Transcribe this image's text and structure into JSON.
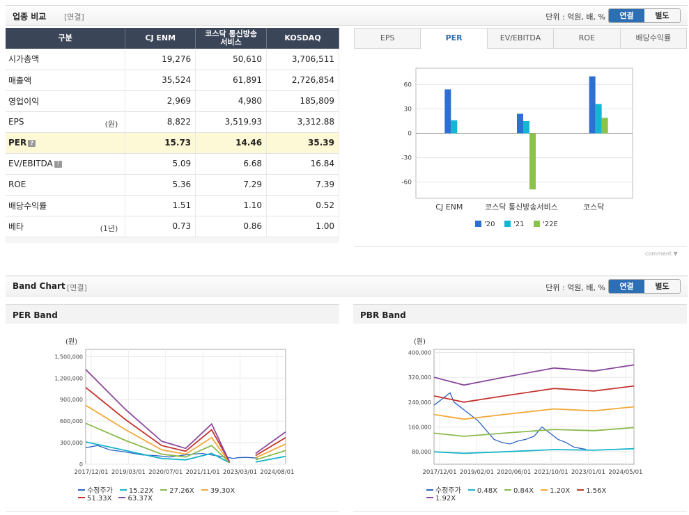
{
  "industry": {
    "title": "업종 비교",
    "tag": "[연결]",
    "unit": "단위 : 억원, 배, %",
    "toggle": {
      "on": "연결",
      "off": "별도"
    },
    "headers": [
      "구분",
      "CJ ENM",
      "코스닥 통신방송\n서비스",
      "KOSDAQ"
    ],
    "rows": [
      {
        "label": "시가총액",
        "sub": "",
        "v": [
          "19,276",
          "50,610",
          "3,706,511"
        ]
      },
      {
        "label": "매출액",
        "sub": "",
        "v": [
          "35,524",
          "61,891",
          "2,726,854"
        ]
      },
      {
        "label": "영업이익",
        "sub": "",
        "v": [
          "2,969",
          "4,980",
          "185,809"
        ]
      },
      {
        "label": "EPS",
        "sub": "(원)",
        "v": [
          "8,822",
          "3,519.93",
          "3,312.88"
        ]
      },
      {
        "label": "PER",
        "sub": "",
        "v": [
          "15.73",
          "14.46",
          "35.39"
        ]
      },
      {
        "label": "EV/EBITDA",
        "sub": "",
        "v": [
          "5.09",
          "6.68",
          "16.84"
        ]
      },
      {
        "label": "ROE",
        "sub": "",
        "v": [
          "5.36",
          "7.29",
          "7.39"
        ]
      },
      {
        "label": "배당수익률",
        "sub": "",
        "v": [
          "1.51",
          "1.10",
          "0.52"
        ]
      },
      {
        "label": "베타",
        "sub": "(1년)",
        "v": [
          "0.73",
          "0.86",
          "1.00"
        ]
      }
    ],
    "tabs": [
      "EPS",
      "PER",
      "EV/EBITDA",
      "ROE",
      "배당수익률"
    ],
    "comment": "comment"
  },
  "band": {
    "title": "Band Chart",
    "tag": "[연결]",
    "unit": "단위 : 억원, 배, %",
    "toggle": {
      "on": "연결",
      "off": "별도"
    },
    "per_title": "PER Band",
    "pbr_title": "PBR Band"
  },
  "colors": {
    "s20": "#2e6fd3",
    "s21": "#15b6d4",
    "s22": "#8cc24a"
  },
  "chart_data": [
    {
      "type": "bar",
      "title": "PER",
      "categories": [
        "CJ ENM",
        "코스닥 통신방송서비스",
        "코스닥"
      ],
      "series": [
        {
          "name": "'20",
          "color": "#2e6fd3",
          "values": [
            54,
            24,
            70
          ]
        },
        {
          "name": "'21",
          "color": "#15b6d4",
          "values": [
            16,
            15,
            36
          ]
        },
        {
          "name": "'22E",
          "color": "#8cc24a",
          "values": [
            null,
            -69,
            19
          ]
        }
      ],
      "yticks": [
        60,
        30,
        0,
        -30,
        -60
      ],
      "ylim": [
        -80,
        80
      ]
    },
    {
      "type": "line",
      "title": "PER Band",
      "ylabel": "(원)",
      "yticks": [
        "1,500,000",
        "1,200,000",
        "900,000",
        "600,000",
        "300,000",
        "0"
      ],
      "ytick_values": [
        1500000,
        1200000,
        900000,
        600000,
        300000,
        0
      ],
      "xticks": [
        "2017/12/01",
        "2019/03/01",
        "2020/07/01",
        "2021/11/01",
        "2023/03/01",
        "2024/08/01"
      ],
      "ylim": [
        0,
        1600000
      ],
      "series": [
        {
          "name": "수정주가",
          "color": "#2b62c4",
          "x": [
            0,
            0.06,
            0.12,
            0.2,
            0.28,
            0.35,
            0.42,
            0.5,
            0.58,
            0.65,
            0.7,
            0.74,
            0.76,
            0.8,
            0.86
          ],
          "y": [
            230000,
            260000,
            200000,
            170000,
            130000,
            120000,
            100000,
            130000,
            150000,
            120000,
            100000,
            80000,
            90000,
            95000,
            85000
          ]
        },
        {
          "name": "15.22X",
          "color": "#17b3c9",
          "x": [
            0,
            0.2,
            0.38,
            0.5,
            0.63,
            0.72,
            0.78,
            0.85,
            1.0
          ],
          "y": [
            310000,
            190000,
            80000,
            60000,
            150000,
            20000,
            null,
            30000,
            110000
          ]
        },
        {
          "name": "27.26X",
          "color": "#8ab94a",
          "x": [
            0,
            0.2,
            0.38,
            0.5,
            0.63,
            0.72,
            0.78,
            0.85,
            1.0
          ],
          "y": [
            570000,
            330000,
            140000,
            100000,
            260000,
            20000,
            null,
            60000,
            190000
          ]
        },
        {
          "name": "39.30X",
          "color": "#f2a838",
          "x": [
            0,
            0.2,
            0.38,
            0.5,
            0.63,
            0.72,
            0.78,
            0.85,
            1.0
          ],
          "y": [
            820000,
            480000,
            200000,
            140000,
            370000,
            20000,
            null,
            90000,
            280000
          ]
        },
        {
          "name": "51.33X",
          "color": "#c4342f",
          "x": [
            0,
            0.2,
            0.38,
            0.5,
            0.63,
            0.72,
            0.78,
            0.85,
            1.0
          ],
          "y": [
            1070000,
            620000,
            260000,
            180000,
            480000,
            30000,
            null,
            120000,
            370000
          ]
        },
        {
          "name": "63.37X",
          "color": "#8a4a9c",
          "x": [
            0,
            0.2,
            0.38,
            0.5,
            0.63,
            0.72,
            0.78,
            0.85,
            1.0
          ],
          "y": [
            1320000,
            760000,
            320000,
            220000,
            560000,
            30000,
            null,
            150000,
            450000
          ]
        }
      ]
    },
    {
      "type": "line",
      "title": "PBR Band",
      "ylabel": "(원)",
      "yticks": [
        "400,000",
        "320,000",
        "240,000",
        "160,000",
        "80,000"
      ],
      "ytick_values": [
        400000,
        320000,
        240000,
        160000,
        80000
      ],
      "xticks": [
        "2017/12/01",
        "2019/02/01",
        "2020/06/01",
        "2021/10/01",
        "2023/01/01",
        "2024/05/01"
      ],
      "ylim": [
        40000,
        410000
      ],
      "series": [
        {
          "name": "수정주가",
          "color": "#2b62c4",
          "x": [
            0,
            0.04,
            0.08,
            0.1,
            0.14,
            0.18,
            0.22,
            0.26,
            0.3,
            0.34,
            0.38,
            0.42,
            0.46,
            0.5,
            0.54,
            0.58,
            0.62,
            0.66,
            0.7,
            0.74,
            0.76
          ],
          "y": [
            230000,
            250000,
            270000,
            240000,
            220000,
            200000,
            180000,
            150000,
            120000,
            110000,
            105000,
            115000,
            120000,
            130000,
            160000,
            140000,
            120000,
            110000,
            95000,
            90000,
            88000
          ]
        },
        {
          "name": "0.48X",
          "color": "#17b3c9",
          "x": [
            0,
            0.15,
            0.35,
            0.6,
            0.8,
            1.0
          ],
          "y": [
            80000,
            75000,
            80000,
            87000,
            85000,
            90000
          ]
        },
        {
          "name": "0.84X",
          "color": "#8ab94a",
          "x": [
            0,
            0.15,
            0.35,
            0.6,
            0.8,
            1.0
          ],
          "y": [
            140000,
            130000,
            140000,
            152000,
            148000,
            158000
          ]
        },
        {
          "name": "1.20X",
          "color": "#f2a838",
          "x": [
            0,
            0.15,
            0.35,
            0.6,
            0.8,
            1.0
          ],
          "y": [
            200000,
            185000,
            200000,
            218000,
            212000,
            225000
          ]
        },
        {
          "name": "1.56X",
          "color": "#c4342f",
          "x": [
            0,
            0.15,
            0.35,
            0.6,
            0.8,
            1.0
          ],
          "y": [
            260000,
            240000,
            260000,
            284000,
            276000,
            292000
          ]
        },
        {
          "name": "1.92X",
          "color": "#8a4a9c",
          "x": [
            0,
            0.15,
            0.35,
            0.6,
            0.8,
            1.0
          ],
          "y": [
            320000,
            295000,
            320000,
            350000,
            340000,
            360000
          ]
        }
      ]
    }
  ]
}
